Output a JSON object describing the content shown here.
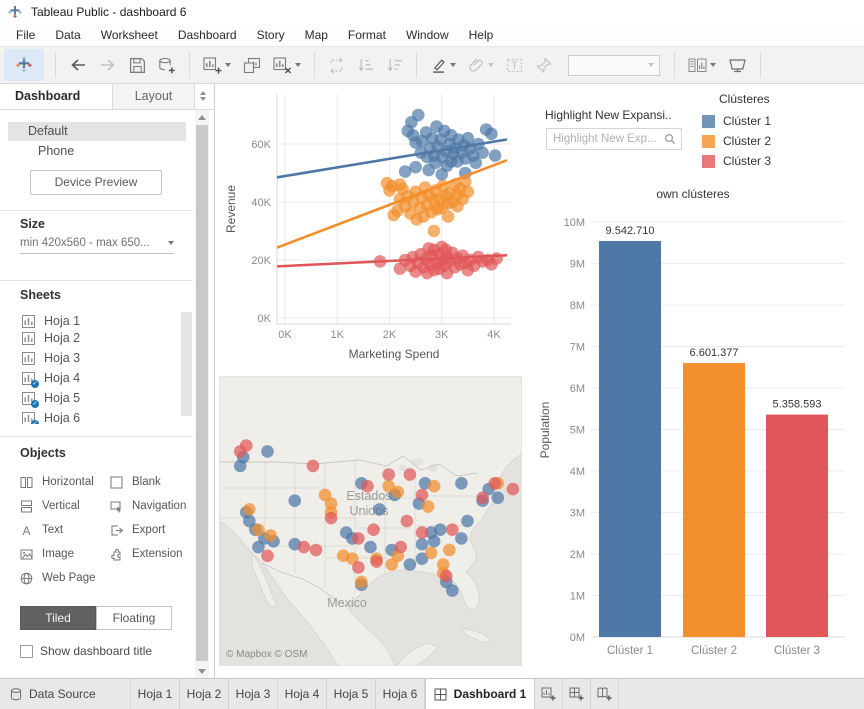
{
  "window": {
    "title": "Tableau Public - dashboard 6"
  },
  "menu": {
    "items": [
      "File",
      "Data",
      "Worksheet",
      "Dashboard",
      "Story",
      "Map",
      "Format",
      "Window",
      "Help"
    ]
  },
  "toolbar": {
    "icons": [
      "tableau-logo",
      "back",
      "forward",
      "save",
      "new-data-source",
      "new-worksheet",
      "duplicate-sheet",
      "clear-sheet",
      "swap-rows-columns",
      "sort-ascending",
      "sort-descending",
      "highlight",
      "format-attach",
      "text-annotation",
      "pin",
      "fit-selector",
      "show-me",
      "presentation-mode"
    ],
    "fit_value": ""
  },
  "sidebar": {
    "tabs": {
      "dashboard": "Dashboard",
      "layout": "Layout"
    },
    "devices": {
      "default": "Default",
      "phone": "Phone"
    },
    "device_preview_label": "Device Preview",
    "size": {
      "header": "Size",
      "value": "min 420x560 - max 650..."
    },
    "sheets": {
      "header": "Sheets",
      "items": [
        {
          "label": "Hoja 1",
          "in_dashboard": false
        },
        {
          "label": "Hoja 2",
          "in_dashboard": false
        },
        {
          "label": "Hoja 3",
          "in_dashboard": false
        },
        {
          "label": "Hoja 4",
          "in_dashboard": true
        },
        {
          "label": "Hoja 5",
          "in_dashboard": true
        },
        {
          "label": "Hoja 6",
          "in_dashboard": true
        }
      ]
    },
    "objects": {
      "header": "Objects",
      "items": [
        {
          "label": "Horizontal",
          "icon": "horizontal-layout-icon"
        },
        {
          "label": "Blank",
          "icon": "blank-icon"
        },
        {
          "label": "Vertical",
          "icon": "vertical-layout-icon"
        },
        {
          "label": "Navigation",
          "icon": "navigation-icon"
        },
        {
          "label": "Text",
          "icon": "text-icon"
        },
        {
          "label": "Export",
          "icon": "export-icon"
        },
        {
          "label": "Image",
          "icon": "image-icon"
        },
        {
          "label": "Extension",
          "icon": "extension-icon"
        },
        {
          "label": "Web Page",
          "icon": "web-page-icon"
        }
      ]
    },
    "tiled_label": "Tiled",
    "floating_label": "Floating",
    "show_title_label": "Show dashboard title"
  },
  "dashboard": {
    "highlight": {
      "label": "Highlight New Expansi..",
      "placeholder": "Highlight New Exp..."
    },
    "legend": {
      "title": "Clústeres",
      "items": [
        {
          "label": "Clúster 1",
          "color": "#4e79a7"
        },
        {
          "label": "Clúster 2",
          "color": "#f28e2b"
        },
        {
          "label": "Clúster 3",
          "color": "#e15759"
        }
      ]
    }
  },
  "chart_data": [
    {
      "type": "scatter",
      "xlabel": "Marketing Spend",
      "ylabel": "Revenue",
      "x_tick_values": [
        0,
        1,
        2,
        3,
        4
      ],
      "x_tick_labels": [
        "0K",
        "1K",
        "2K",
        "3K",
        "4K"
      ],
      "y_tick_values": [
        0,
        20,
        40,
        60
      ],
      "y_tick_labels": [
        "0K",
        "20K",
        "40K",
        "60K"
      ],
      "x_range": [
        -0.15,
        4.23
      ],
      "y_range": [
        0,
        74
      ],
      "units": "thousands",
      "series": [
        {
          "name": "Clúster 1",
          "color": "#4e79a7",
          "trend": [
            [
              -0.15,
              48.5
            ],
            [
              4.23,
              61.5
            ]
          ],
          "points": [
            [
              2.35,
              64.5
            ],
            [
              2.42,
              67.5
            ],
            [
              2.45,
              63
            ],
            [
              2.5,
              60.5
            ],
            [
              2.55,
              70
            ],
            [
              2.6,
              57
            ],
            [
              2.62,
              61
            ],
            [
              2.7,
              64
            ],
            [
              2.72,
              55.5
            ],
            [
              2.78,
              58.5
            ],
            [
              2.82,
              62
            ],
            [
              2.85,
              56
            ],
            [
              2.9,
              66
            ],
            [
              2.92,
              59
            ],
            [
              2.98,
              61.5
            ],
            [
              3.0,
              55.5
            ],
            [
              3.05,
              64.5
            ],
            [
              3.08,
              57.5
            ],
            [
              3.1,
              52.5
            ],
            [
              3.15,
              60
            ],
            [
              3.18,
              63
            ],
            [
              3.22,
              56.5
            ],
            [
              3.25,
              58.5
            ],
            [
              3.3,
              54
            ],
            [
              3.32,
              61.5
            ],
            [
              3.38,
              57
            ],
            [
              3.42,
              59.5
            ],
            [
              3.45,
              55
            ],
            [
              3.5,
              62
            ],
            [
              3.55,
              58.5
            ],
            [
              3.6,
              56
            ],
            [
              3.65,
              53.5
            ],
            [
              3.7,
              60
            ],
            [
              3.78,
              57
            ],
            [
              3.85,
              65
            ],
            [
              3.95,
              63.5
            ],
            [
              4.02,
              56
            ],
            [
              2.3,
              50.5
            ],
            [
              2.5,
              52
            ],
            [
              2.75,
              51
            ],
            [
              3.0,
              49.5
            ],
            [
              3.45,
              50
            ],
            [
              3.18,
              54
            ],
            [
              2.88,
              53.5
            ]
          ]
        },
        {
          "name": "Clúster 2",
          "color": "#f28e2b",
          "trend": [
            [
              -0.15,
              24.3
            ],
            [
              4.23,
              54.3
            ]
          ],
          "points": [
            [
              1.95,
              46.5
            ],
            [
              2.0,
              44
            ],
            [
              2.08,
              35.5
            ],
            [
              2.15,
              37
            ],
            [
              2.2,
              41
            ],
            [
              2.25,
              44.5
            ],
            [
              2.3,
              38.5
            ],
            [
              2.35,
              42
            ],
            [
              2.4,
              36
            ],
            [
              2.45,
              40
            ],
            [
              2.5,
              43.5
            ],
            [
              2.52,
              34
            ],
            [
              2.58,
              38
            ],
            [
              2.62,
              41.5
            ],
            [
              2.68,
              45
            ],
            [
              2.72,
              39
            ],
            [
              2.75,
              42.5
            ],
            [
              2.8,
              36.5
            ],
            [
              2.85,
              40.5
            ],
            [
              2.88,
              44
            ],
            [
              2.92,
              37.5
            ],
            [
              2.95,
              41
            ],
            [
              3.0,
              38
            ],
            [
              3.02,
              45.5
            ],
            [
              3.08,
              42
            ],
            [
              3.12,
              39.5
            ],
            [
              3.15,
              43
            ],
            [
              3.2,
              40
            ],
            [
              3.25,
              46
            ],
            [
              3.3,
              42.5
            ],
            [
              3.35,
              44.5
            ],
            [
              3.4,
              41
            ],
            [
              3.45,
              47
            ],
            [
              3.5,
              43.5
            ],
            [
              3.12,
              35
            ],
            [
              2.65,
              35
            ],
            [
              2.85,
              30
            ],
            [
              3.3,
              38.5
            ],
            [
              2.2,
              46
            ],
            [
              2.05,
              45.5
            ]
          ]
        },
        {
          "name": "Clúster 3",
          "color": "#e15759",
          "trend": [
            [
              -0.15,
              17.8
            ],
            [
              4.23,
              21.6
            ]
          ],
          "points": [
            [
              1.82,
              19.5
            ],
            [
              2.2,
              17
            ],
            [
              2.3,
              20
            ],
            [
              2.4,
              18
            ],
            [
              2.45,
              21
            ],
            [
              2.5,
              16
            ],
            [
              2.55,
              19
            ],
            [
              2.6,
              22
            ],
            [
              2.65,
              17.5
            ],
            [
              2.7,
              20.5
            ],
            [
              2.72,
              15.5
            ],
            [
              2.78,
              18.5
            ],
            [
              2.8,
              21.5
            ],
            [
              2.85,
              16.5
            ],
            [
              2.85,
              23.5
            ],
            [
              2.9,
              19
            ],
            [
              2.95,
              22
            ],
            [
              2.95,
              17
            ],
            [
              3.0,
              20
            ],
            [
              3.0,
              24.5
            ],
            [
              3.05,
              18
            ],
            [
              3.1,
              21
            ],
            [
              3.1,
              15.5
            ],
            [
              3.15,
              19.5
            ],
            [
              3.2,
              22.5
            ],
            [
              3.25,
              17.5
            ],
            [
              3.3,
              20.5
            ],
            [
              3.35,
              18.5
            ],
            [
              3.4,
              21.5
            ],
            [
              3.45,
              19
            ],
            [
              3.5,
              16.5
            ],
            [
              3.55,
              20
            ],
            [
              3.62,
              18
            ],
            [
              3.7,
              21
            ],
            [
              3.78,
              19.5
            ],
            [
              3.88,
              20
            ],
            [
              3.95,
              18.5
            ],
            [
              4.05,
              20.5
            ],
            [
              2.75,
              24
            ],
            [
              3.08,
              23.5
            ]
          ]
        }
      ]
    },
    {
      "type": "bar",
      "title": "own clústeres",
      "ylabel": "Population",
      "categories": [
        "Clúster 1",
        "Clúster 2",
        "Clúster 3"
      ],
      "values": [
        9542710,
        6601377,
        5358593
      ],
      "value_labels": [
        "9.542.710",
        "6.601.377",
        "5.358.593"
      ],
      "colors": [
        "#4e79a7",
        "#f28e2b",
        "#e15759"
      ],
      "y_tick_values": [
        0,
        1,
        2,
        3,
        4,
        5,
        6,
        7,
        8,
        9,
        10
      ],
      "y_tick_labels": [
        "0M",
        "1M",
        "2M",
        "3M",
        "4M",
        "5M",
        "6M",
        "7M",
        "8M",
        "9M",
        "10M"
      ],
      "ylim": [
        0,
        10000000
      ]
    },
    {
      "type": "map-scatter",
      "labels": [
        "Estados Unidos",
        "Mexico"
      ],
      "label_lines": [
        "Estados",
        "Unidos",
        "Mexico"
      ],
      "attribution": "© Mapbox © OSM",
      "points_by_cluster": [
        [
          [
            16,
            26
          ],
          [
            8,
            28
          ],
          [
            7,
            31
          ],
          [
            25,
            43
          ],
          [
            10,
            50
          ],
          [
            9,
            47
          ],
          [
            15,
            56
          ],
          [
            13,
            59
          ],
          [
            25,
            58
          ],
          [
            47,
            37
          ],
          [
            58,
            41
          ],
          [
            68,
            37
          ],
          [
            80,
            37
          ],
          [
            89,
            39
          ],
          [
            92,
            42
          ],
          [
            53,
            46
          ],
          [
            66,
            44
          ],
          [
            42,
            54
          ],
          [
            50,
            59
          ],
          [
            57,
            60
          ],
          [
            67,
            58
          ],
          [
            70,
            54
          ],
          [
            73,
            53
          ],
          [
            67,
            63
          ],
          [
            63,
            65
          ],
          [
            82,
            50
          ],
          [
            80,
            56
          ],
          [
            75,
            71
          ],
          [
            77,
            74
          ],
          [
            47,
            72
          ],
          [
            87,
            43
          ],
          [
            18,
            57
          ],
          [
            12,
            53
          ],
          [
            44,
            56
          ],
          [
            71,
            57
          ]
        ],
        [
          [
            10,
            46
          ],
          [
            13,
            53
          ],
          [
            37,
            44
          ],
          [
            37,
            47
          ],
          [
            59,
            40
          ],
          [
            71,
            38
          ],
          [
            59,
            62
          ],
          [
            41,
            62
          ],
          [
            44,
            63
          ],
          [
            52,
            63
          ],
          [
            57,
            65
          ],
          [
            70,
            61
          ],
          [
            76,
            60
          ],
          [
            74,
            65
          ],
          [
            47,
            71
          ],
          [
            92,
            37
          ],
          [
            74,
            68
          ],
          [
            56,
            38
          ],
          [
            35,
            41
          ],
          [
            17,
            55
          ],
          [
            69,
            45
          ]
        ],
        [
          [
            31,
            31
          ],
          [
            9,
            24
          ],
          [
            56,
            34
          ],
          [
            63,
            34
          ],
          [
            67,
            41
          ],
          [
            37,
            49
          ],
          [
            32,
            60
          ],
          [
            46,
            56
          ],
          [
            51,
            53
          ],
          [
            60,
            59
          ],
          [
            67,
            54
          ],
          [
            52,
            64
          ],
          [
            46,
            66
          ],
          [
            77,
            53
          ],
          [
            91,
            37
          ],
          [
            87,
            42
          ],
          [
            75,
            69
          ],
          [
            16,
            62
          ],
          [
            7,
            26
          ],
          [
            49,
            38
          ],
          [
            28,
            59
          ],
          [
            62,
            50
          ],
          [
            97,
            39
          ]
        ]
      ]
    }
  ],
  "tabbar": {
    "tabs": [
      "Data Source",
      "Hoja 1",
      "Hoja 2",
      "Hoja 3",
      "Hoja 4",
      "Hoja 5",
      "Hoja 6",
      "Dashboard 1"
    ],
    "active": "Dashboard 1",
    "new_buttons": [
      "new-worksheet",
      "new-dashboard",
      "new-story"
    ]
  }
}
